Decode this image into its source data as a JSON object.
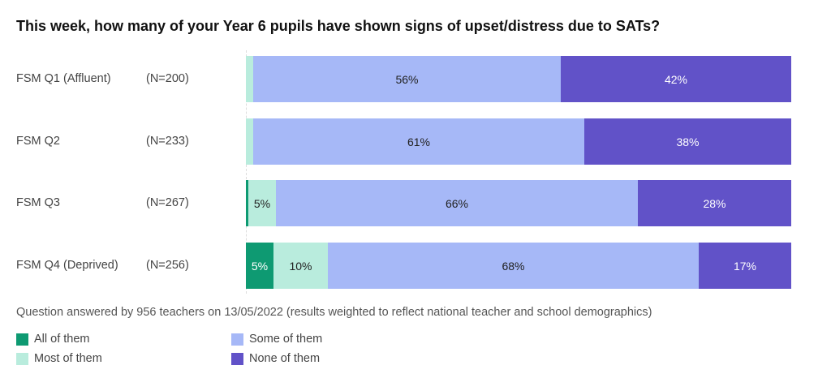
{
  "chart_data": {
    "type": "bar",
    "orientation": "horizontal",
    "stacked": true,
    "title": "This week, how many of your Year 6 pupils have shown signs of upset/distress due to SATs?",
    "categories": [
      "FSM Q1 (Affluent)",
      "FSM Q2",
      "FSM Q3",
      "FSM Q4 (Deprived)"
    ],
    "n_labels": [
      "(N=200)",
      "(N=233)",
      "(N=267)",
      "(N=256)"
    ],
    "xlim": [
      0,
      100
    ],
    "series": [
      {
        "name": "All of them",
        "color": "#0e9a72",
        "values": [
          0,
          0,
          0.4,
          5
        ],
        "labels": [
          "",
          "",
          "",
          "5%"
        ]
      },
      {
        "name": "Most of them",
        "color": "#b9ecdd",
        "values": [
          1.3,
          1.3,
          5,
          10
        ],
        "labels": [
          "",
          "",
          "5%",
          "10%"
        ]
      },
      {
        "name": "Some of them",
        "color": "#a6b8f7",
        "values": [
          56,
          61,
          66,
          68
        ],
        "labels": [
          "56%",
          "61%",
          "66%",
          "68%"
        ]
      },
      {
        "name": "None of them",
        "color": "#6152c8",
        "values": [
          42,
          38,
          28,
          17
        ],
        "labels": [
          "42%",
          "38%",
          "28%",
          "17%"
        ]
      }
    ],
    "note": "Question answered by 956 teachers on 13/05/2022 (results weighted to reflect national teacher and school demographics)"
  }
}
